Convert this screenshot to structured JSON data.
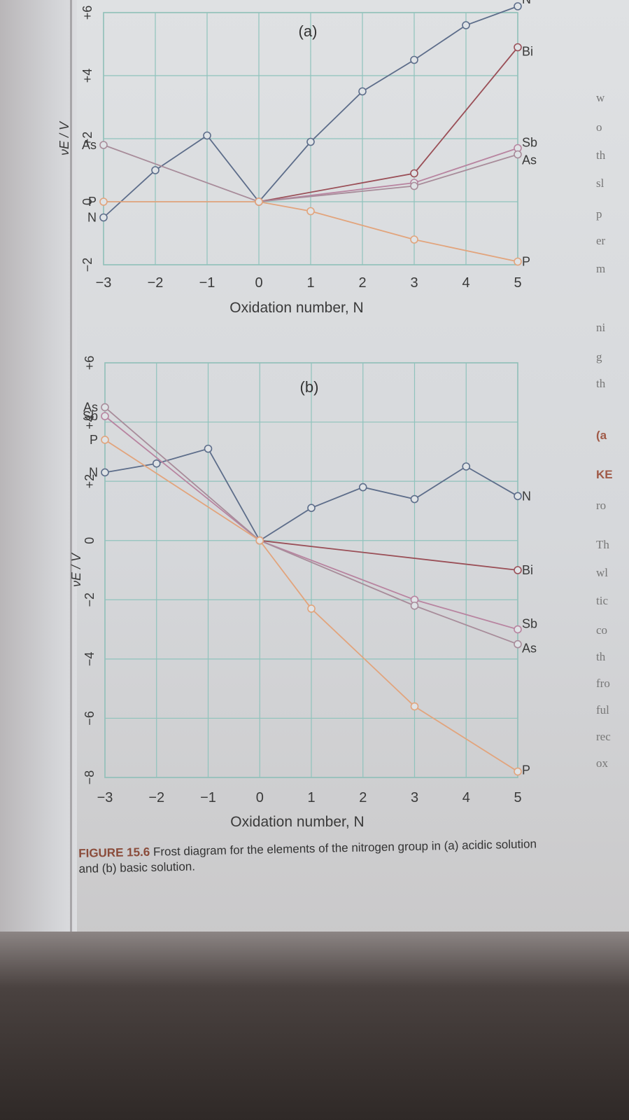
{
  "chart_data": [
    {
      "type": "line",
      "title": "(a)",
      "xlabel": "Oxidation number, N",
      "ylabel": "νE / V",
      "xlim": [
        -3,
        5
      ],
      "ylim": [
        -2,
        6
      ],
      "x_ticks": [
        "−3",
        "−2",
        "−1",
        "0",
        "1",
        "2",
        "3",
        "4",
        "5"
      ],
      "y_ticks": [
        "−2",
        "0",
        "+2",
        "+4",
        "+6"
      ],
      "grid": true,
      "series": [
        {
          "name": "N",
          "color": "#5d6d8a",
          "x": [
            -3,
            -2,
            -1,
            0,
            1,
            2,
            3,
            4,
            5
          ],
          "y": [
            -0.5,
            1.0,
            2.1,
            0.0,
            1.9,
            3.5,
            4.5,
            5.6,
            6.2
          ]
        },
        {
          "name": "Bi",
          "color": "#9a4f57",
          "x": [
            0,
            3,
            5
          ],
          "y": [
            0.0,
            0.9,
            4.9
          ]
        },
        {
          "name": "Sb",
          "color": "#b884a0",
          "x": [
            0,
            3,
            5
          ],
          "y": [
            0.0,
            0.6,
            1.7
          ]
        },
        {
          "name": "As",
          "color": "#a88c9a",
          "x": [
            -3,
            0,
            3,
            5
          ],
          "y": [
            1.8,
            0.0,
            0.5,
            1.5
          ]
        },
        {
          "name": "P",
          "color": "#e2a47c",
          "x": [
            -3,
            0,
            1,
            3,
            5
          ],
          "y": [
            0.0,
            0.0,
            -0.3,
            -1.2,
            -1.9
          ]
        }
      ]
    },
    {
      "type": "line",
      "title": "(b)",
      "xlabel": "Oxidation number, N",
      "ylabel": "νE / V",
      "xlim": [
        -3,
        5
      ],
      "ylim": [
        -8,
        6
      ],
      "x_ticks": [
        "−3",
        "−2",
        "−1",
        "0",
        "1",
        "2",
        "3",
        "4",
        "5"
      ],
      "y_ticks": [
        "−8",
        "−6",
        "−4",
        "−2",
        "0",
        "+2",
        "+4",
        "+6"
      ],
      "grid": true,
      "series": [
        {
          "name": "N",
          "color": "#5d6d8a",
          "x": [
            -3,
            -2,
            -1,
            0,
            1,
            2,
            3,
            4,
            5
          ],
          "y": [
            2.3,
            2.6,
            3.1,
            0.0,
            1.1,
            1.8,
            1.4,
            2.5,
            1.5
          ]
        },
        {
          "name": "Bi",
          "color": "#9a4f57",
          "x": [
            0,
            5
          ],
          "y": [
            0.0,
            -1.0
          ]
        },
        {
          "name": "Sb",
          "color": "#b884a0",
          "x": [
            -3,
            0,
            3,
            5
          ],
          "y": [
            4.2,
            0.0,
            -2.0,
            -3.0
          ]
        },
        {
          "name": "As",
          "color": "#a88c9a",
          "x": [
            -3,
            0,
            3,
            5
          ],
          "y": [
            4.5,
            0.0,
            -2.2,
            -3.5
          ]
        },
        {
          "name": "P",
          "color": "#e2a47c",
          "x": [
            -3,
            0,
            1,
            3,
            5
          ],
          "y": [
            3.4,
            0.0,
            -2.3,
            -5.6,
            -7.8
          ]
        }
      ]
    }
  ],
  "caption": {
    "figure_label": "FIGURE 15.6",
    "text": " Frost diagram for the elements of the nitrogen group in (a) acidic solution and (b) basic solution."
  },
  "margin_fragments": [
    "w",
    "o",
    "th",
    "sl",
    "p",
    "er",
    "m",
    "ni",
    "g",
    "th",
    "(a",
    "KE",
    "ro",
    "Th",
    "wl",
    "tic",
    "co",
    "th",
    "fro",
    "ful",
    "rec",
    "ox"
  ]
}
